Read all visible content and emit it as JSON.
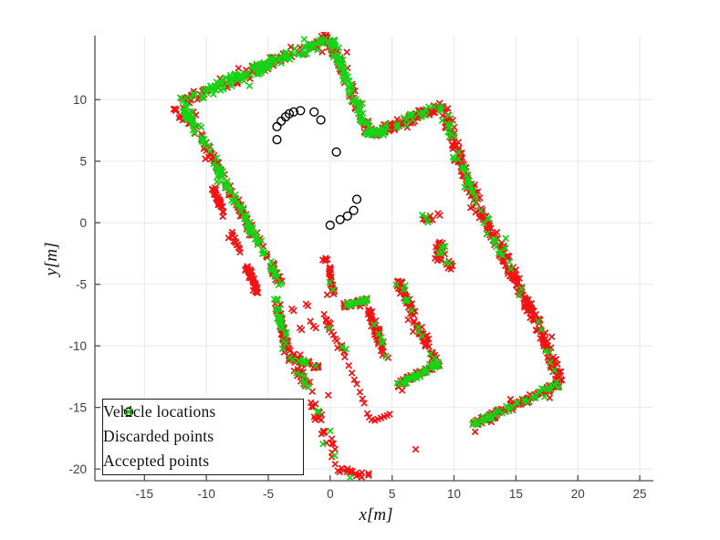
{
  "figure": {
    "background": "#ffffff"
  },
  "chart_data": {
    "type": "scatter",
    "title": "",
    "xlabel": "x[m]",
    "ylabel": "y[m]",
    "xlim": [
      -19.0,
      26.1
    ],
    "ylim": [
      -20.95,
      15.2
    ],
    "xticks": [
      -15,
      -10,
      -5,
      0,
      5,
      10,
      15,
      20,
      25
    ],
    "yticks": [
      -20,
      -15,
      -10,
      -5,
      0,
      5,
      10
    ],
    "grid": true,
    "grid_color": "#e8e8e8",
    "axis_color": "#4d4d4d",
    "tick_label_color": "#3c3c3c",
    "box": "off",
    "legend": {
      "position": "southwest",
      "entries": [
        {
          "label": "Vehicle locations",
          "marker": "circle",
          "color": "#000000"
        },
        {
          "label": "Discarded points",
          "marker": "x",
          "color": "#f01414"
        },
        {
          "label": "Accepted points",
          "marker": "x",
          "color": "#15d415"
        }
      ]
    },
    "series": [
      {
        "name": "Vehicle locations",
        "marker": "circle",
        "color": "#000000",
        "points": [
          [
            -4.3,
            7.8
          ],
          [
            -4.3,
            6.75
          ],
          [
            -3.95,
            8.25
          ],
          [
            -3.6,
            8.6
          ],
          [
            -3.3,
            8.85
          ],
          [
            -2.95,
            9.0
          ],
          [
            -2.4,
            9.1
          ],
          [
            -1.3,
            9.0
          ],
          [
            -0.75,
            8.35
          ],
          [
            0.5,
            5.75
          ],
          [
            0.0,
            -0.2
          ],
          [
            0.8,
            0.25
          ],
          [
            1.4,
            0.55
          ],
          [
            1.9,
            1.0
          ],
          [
            2.15,
            1.9
          ]
        ]
      },
      {
        "name": "Discarded points",
        "marker": "x",
        "color": "#f01414"
      },
      {
        "name": "Accepted points",
        "marker": "x",
        "color": "#15d415"
      }
    ],
    "lidar_map": {
      "segment_format": [
        "x1",
        "y1",
        "x2",
        "y2",
        "n_points",
        "jitter_m",
        "accepted_fraction"
      ],
      "wall_segments": [
        [
          -12.0,
          9.85,
          -0.15,
          14.95,
          230,
          0.26,
          0.52
        ],
        [
          -0.05,
          14.95,
          3.25,
          7.1,
          150,
          0.22,
          0.62
        ],
        [
          3.3,
          7.1,
          9.0,
          9.5,
          140,
          0.22,
          0.25
        ],
        [
          9.05,
          9.45,
          10.7,
          4.2,
          75,
          0.24,
          0.28
        ],
        [
          10.7,
          4.2,
          12.4,
          0.4,
          60,
          0.24,
          0.22
        ],
        [
          12.4,
          0.4,
          14.3,
          -3.3,
          60,
          0.24,
          0.18
        ],
        [
          14.3,
          -3.3,
          15.75,
          -6.2,
          45,
          0.22,
          0.12
        ],
        [
          15.75,
          -6.2,
          16.75,
          -8.15,
          35,
          0.2,
          0.12
        ],
        [
          16.75,
          -8.15,
          18.55,
          -12.9,
          65,
          0.2,
          0.12
        ],
        [
          18.45,
          -13.15,
          11.45,
          -16.45,
          150,
          0.16,
          0.3
        ],
        [
          -11.85,
          9.5,
          -3.95,
          -5.0,
          235,
          0.18,
          0.45
        ],
        [
          -4.35,
          -6.1,
          -3.5,
          -10.7,
          62,
          0.16,
          0.3
        ],
        [
          -3.45,
          -10.9,
          -0.85,
          -11.7,
          45,
          0.14,
          0.22
        ],
        [
          -2.85,
          -11.9,
          -1.45,
          -13.55,
          26,
          0.15,
          0.18
        ],
        [
          -9.45,
          2.8,
          -8.55,
          0.55,
          40,
          0.09,
          0.0
        ],
        [
          -8.05,
          -0.65,
          -7.3,
          -2.4,
          16,
          0.1,
          0.0
        ],
        [
          -6.75,
          -3.5,
          -5.85,
          -5.7,
          42,
          0.1,
          0.0
        ],
        [
          -12.6,
          9.3,
          -11.75,
          8.3,
          9,
          0.12,
          0.0
        ],
        [
          1.1,
          -6.7,
          3.0,
          -6.3,
          48,
          0.13,
          0.38
        ],
        [
          3.0,
          -6.8,
          4.6,
          -11.0,
          52,
          0.15,
          0.15
        ],
        [
          5.45,
          -4.75,
          7.9,
          -10.1,
          82,
          0.18,
          0.15
        ],
        [
          8.0,
          -10.45,
          8.65,
          -11.2,
          12,
          0.12,
          0.15
        ],
        [
          5.35,
          -13.2,
          8.75,
          -11.4,
          95,
          0.15,
          0.4
        ],
        [
          -0.4,
          -2.85,
          0.05,
          -4.15,
          14,
          0.13,
          0.07
        ],
        [
          -0.05,
          -4.35,
          0.3,
          -5.8,
          16,
          0.12,
          0.12
        ],
        [
          -0.65,
          -7.3,
          1.3,
          -11.0,
          24,
          0.12,
          0.12
        ],
        [
          -1.7,
          -13.8,
          0.25,
          -19.0,
          30,
          0.3,
          0.07
        ],
        [
          0.5,
          -19.9,
          3.3,
          -20.6,
          20,
          0.18,
          0.1
        ]
      ],
      "cluster_format": [
        "cx",
        "cy",
        "rx",
        "ry",
        "n_points",
        "accepted_fraction"
      ],
      "clusters": [
        [
          7.85,
          0.35,
          0.55,
          0.45,
          14,
          0.3
        ],
        [
          8.9,
          -2.3,
          0.5,
          0.95,
          26,
          0.2
        ],
        [
          9.6,
          -3.4,
          0.35,
          0.45,
          9,
          0.22
        ]
      ],
      "sparse_discarded": [
        [
          1.5,
          -11.6
        ],
        [
          1.75,
          -12.2
        ],
        [
          1.95,
          -12.75
        ],
        [
          2.15,
          -13.1
        ],
        [
          2.4,
          -13.75
        ],
        [
          2.6,
          -14.3
        ],
        [
          2.75,
          -14.65
        ],
        [
          -0.15,
          -14.0
        ],
        [
          -3.1,
          -7.0
        ],
        [
          -2.95,
          -7.15
        ],
        [
          -1.95,
          -6.6
        ],
        [
          -1.8,
          -6.75
        ],
        [
          -2.45,
          -8.55
        ],
        [
          -2.3,
          -8.7
        ],
        [
          -1.6,
          -8.0
        ],
        [
          -1.35,
          -8.4
        ],
        [
          -1.15,
          -8.55
        ],
        [
          3.0,
          -15.5
        ],
        [
          3.15,
          -15.8
        ],
        [
          3.35,
          -16.0
        ],
        [
          3.6,
          -16.05
        ],
        [
          3.85,
          -15.95
        ],
        [
          4.1,
          -15.85
        ],
        [
          4.35,
          -15.75
        ],
        [
          4.6,
          -15.65
        ],
        [
          4.8,
          -15.55
        ],
        [
          6.9,
          -18.4
        ],
        [
          8.7,
          0.75
        ],
        [
          8.85,
          0.6
        ],
        [
          0.4,
          -19.6
        ],
        [
          -11.05,
          9.0
        ],
        [
          -10.85,
          8.75
        ]
      ],
      "sparse_accepted": [
        [
          0.0,
          -16.9
        ],
        [
          -2.0,
          -12.9
        ],
        [
          1.6,
          -20.7
        ]
      ]
    }
  }
}
